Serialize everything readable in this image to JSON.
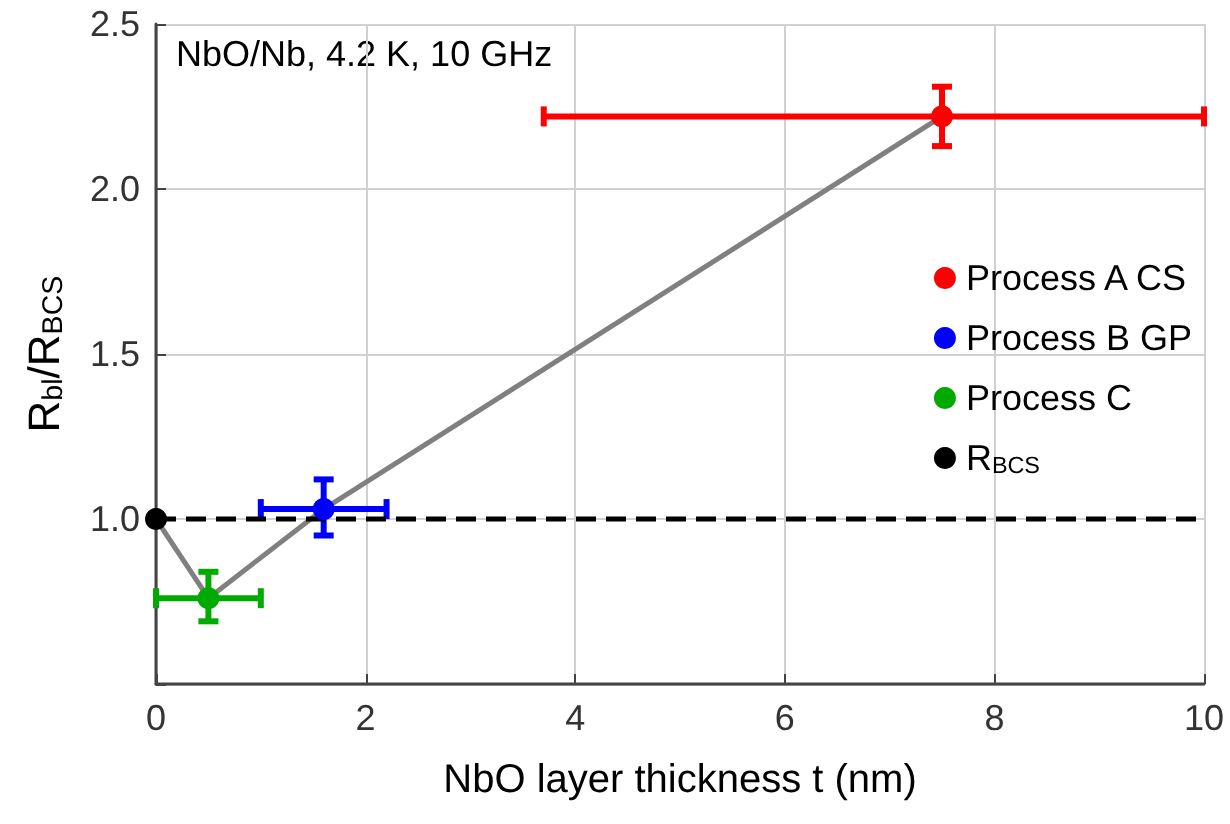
{
  "chart_data": {
    "type": "scatter",
    "xlabel": "NbO layer thickness t (nm)",
    "ylabel": "R$_{bl}$/R$_{BCS}$",
    "annotations": [
      "NbO/Nb, 4.2 K, 10 GHz"
    ],
    "series": [
      {
        "name": "Process A CS",
        "color": "#ff0000",
        "x": [
          7.5
        ],
        "values": [
          2.22
        ],
        "errors": [
          [
            2.13,
            2.31
          ]
        ],
        "xerrors": [
          [
            3.7,
            10
          ]
        ],
        "marker": "circle"
      },
      {
        "name": "Process B GP",
        "color": "#0000ff",
        "x": [
          1.6
        ],
        "values": [
          1.03
        ],
        "errors": [
          [
            0.95,
            1.12
          ]
        ],
        "xerrors": [
          [
            1.0,
            2.2
          ]
        ],
        "marker": "circle"
      },
      {
        "name": "Process C",
        "color": "#00aa00",
        "x": [
          0.5
        ],
        "values": [
          0.76
        ],
        "errors": [
          [
            0.69,
            0.84
          ]
        ],
        "xerrors": [
          [
            0,
            1.0
          ]
        ],
        "marker": "circle"
      },
      {
        "name": "R$_{BCS}$",
        "color": "#000000",
        "x": [
          0
        ],
        "values": [
          1.0
        ],
        "marker": "circle"
      },
      {
        "type": "line",
        "color": "#808080",
        "x": [
          0,
          0.5,
          1.6,
          7.5
        ],
        "values": [
          1.0,
          0.76,
          1.03,
          2.22
        ]
      }
    ],
    "ref_lines": [
      {
        "axis": "y",
        "value": 1.0,
        "color": "#000000",
        "line_style": "dashed"
      }
    ],
    "xlim": [
      0,
      10
    ],
    "xticks": [
      0,
      2,
      4,
      6,
      8,
      10
    ],
    "ylim": [
      0.5,
      2.5
    ],
    "yticks": [
      {
        "value": 0.5,
        "label": null
      },
      {
        "value": 1.0,
        "label": "1.0"
      },
      {
        "value": 1.5,
        "label": "1.5"
      },
      {
        "value": 2.0,
        "label": "2.0"
      },
      {
        "value": 2.5,
        "label": "2.5"
      }
    ],
    "grid": true,
    "legend": "right"
  }
}
